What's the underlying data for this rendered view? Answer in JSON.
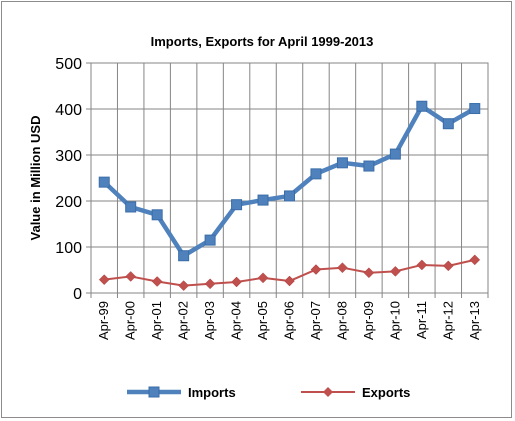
{
  "chart_data": {
    "type": "line",
    "title": "Imports, Exports for April 1999-2013",
    "xlabel": "",
    "ylabel": "Value in  Million  USD",
    "ylim": [
      0,
      500
    ],
    "yticks": [
      0,
      100,
      200,
      300,
      400,
      500
    ],
    "grid": true,
    "legend_position": "bottom",
    "categories": [
      "Apr-99",
      "Apr-00",
      "Apr-01",
      "Apr-02",
      "Apr-03",
      "Apr-04",
      "Apr-05",
      "Apr-06",
      "Apr-07",
      "Apr-08",
      "Apr-09",
      "Apr-10",
      "Apr-11",
      "Apr-12",
      "Apr-13"
    ],
    "series": [
      {
        "name": "Imports",
        "color": "#4f81bd",
        "marker": "square",
        "values": [
          241,
          187,
          170,
          81,
          115,
          192,
          202,
          211,
          259,
          283,
          276,
          302,
          406,
          368,
          401
        ]
      },
      {
        "name": "Exports",
        "color": "#c0504d",
        "marker": "diamond",
        "values": [
          29,
          36,
          25,
          16,
          20,
          24,
          33,
          26,
          51,
          55,
          44,
          47,
          61,
          59,
          72
        ]
      }
    ]
  }
}
